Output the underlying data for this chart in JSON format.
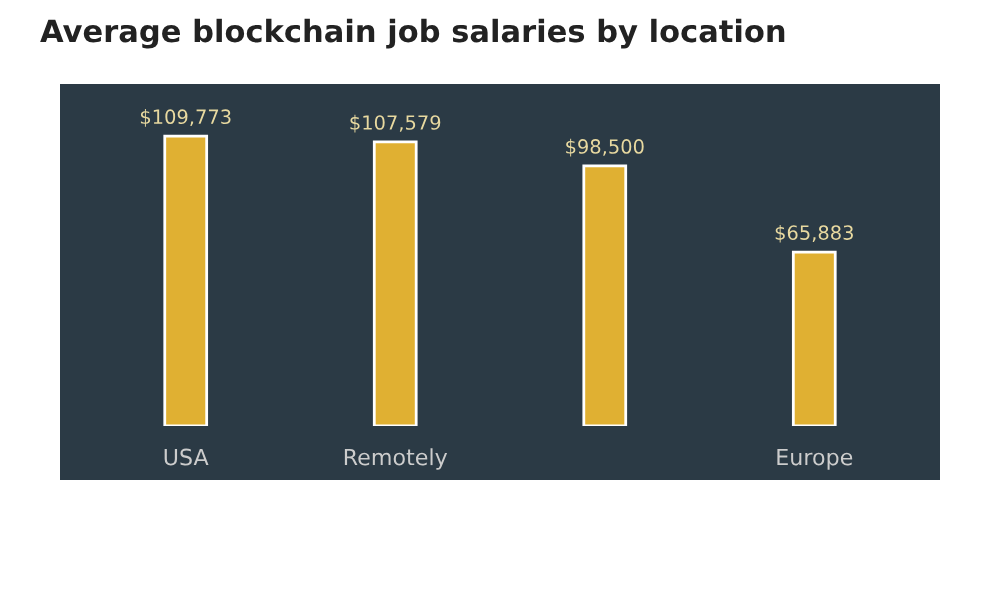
{
  "chart_data": {
    "type": "bar",
    "title": "Average blockchain job salaries by location",
    "categories": [
      "USA",
      "Remotely",
      null,
      "Europe"
    ],
    "values": [
      109773,
      107579,
      98500,
      65883
    ],
    "value_labels": [
      "$109,773",
      "$107,579",
      "$98,500",
      "$65,883"
    ],
    "color": "#e0b032",
    "grid": false
  }
}
